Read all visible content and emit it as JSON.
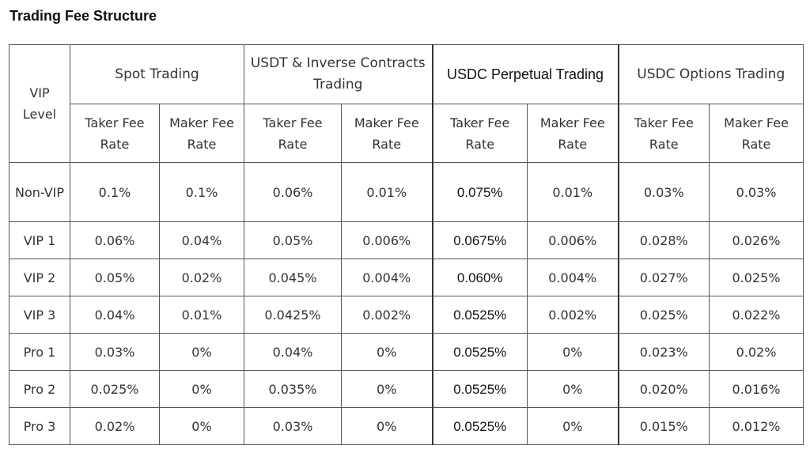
{
  "title": "Trading Fee Structure",
  "table": {
    "vip_header": "VIP Level",
    "groups": [
      "Spot Trading",
      "USDT & Inverse Contracts Trading",
      "USDC Perpetual Trading",
      "USDC Options Trading"
    ],
    "sub_headers": [
      "Taker Fee Rate",
      "Maker Fee Rate",
      "Taker Fee Rate",
      "Maker Fee Rate",
      "Taker Fee Rate",
      "Maker Fee Rate",
      "Taker Fee Rate",
      "Maker Fee Rate"
    ],
    "rows": [
      {
        "level": "Non-VIP",
        "cells": [
          "0.1%",
          "0.1%",
          "0.06%",
          "0.01%",
          "0.075%",
          "0.01%",
          "0.03%",
          "0.03%"
        ]
      },
      {
        "level": "VIP 1",
        "cells": [
          "0.06%",
          "0.04%",
          "0.05%",
          "0.006%",
          "0.0675%",
          "0.006%",
          "0.028%",
          "0.026%"
        ]
      },
      {
        "level": "VIP 2",
        "cells": [
          "0.05%",
          "0.02%",
          "0.045%",
          "0.004%",
          "0.060%",
          "0.004%",
          "0.027%",
          "0.025%"
        ]
      },
      {
        "level": "VIP 3",
        "cells": [
          "0.04%",
          "0.01%",
          "0.0425%",
          "0.002%",
          "0.0525%",
          "0.002%",
          "0.025%",
          "0.022%"
        ]
      },
      {
        "level": "Pro 1",
        "cells": [
          "0.03%",
          "0%",
          "0.04%",
          "0%",
          "0.0525%",
          "0%",
          "0.023%",
          "0.02%"
        ]
      },
      {
        "level": "Pro 2",
        "cells": [
          "0.025%",
          "0%",
          "0.035%",
          "0%",
          "0.0525%",
          "0%",
          "0.020%",
          "0.016%"
        ]
      },
      {
        "level": "Pro 3",
        "cells": [
          "0.02%",
          "0%",
          "0.03%",
          "0%",
          "0.0525%",
          "0%",
          "0.015%",
          "0.012%"
        ]
      }
    ]
  }
}
